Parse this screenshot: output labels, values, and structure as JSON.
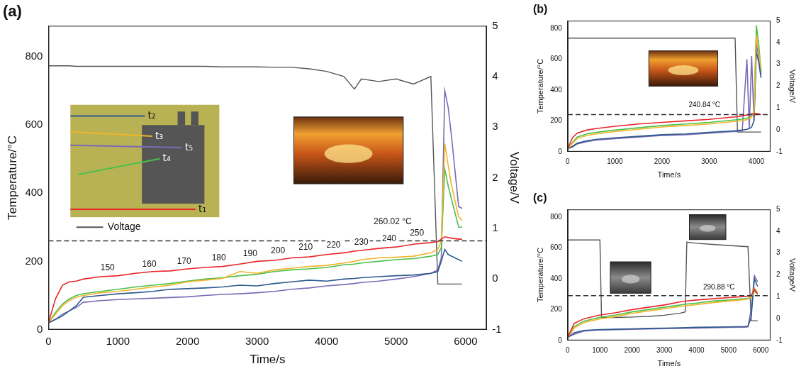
{
  "chart_data": [
    {
      "type": "line",
      "title": "(a)",
      "x_label": "Time/s",
      "y_label": "Temperature/°C",
      "y2_label": "Voltage/V",
      "x": [
        0,
        100,
        200,
        300,
        400,
        500,
        750,
        1000,
        1250,
        1500,
        1750,
        2000,
        2250,
        2500,
        2750,
        3000,
        3250,
        3500,
        3750,
        4000,
        4250,
        4400,
        4500,
        4750,
        5000,
        5250,
        5500,
        5600,
        5650,
        5700,
        5750,
        5800,
        5900,
        5950
      ],
      "series": [
        {
          "name": "t₁",
          "color": "#e8262b",
          "values": [
            20,
            90,
            130,
            140,
            142,
            148,
            155,
            158,
            165,
            170,
            172,
            178,
            182,
            185,
            192,
            200,
            203,
            210,
            213,
            220,
            225,
            230,
            232,
            238,
            242,
            250,
            255,
            258,
            265,
            272,
            270,
            268,
            265,
            265
          ]
        },
        {
          "name": "t₂",
          "color": "#2e5b8c",
          "values": [
            20,
            30,
            40,
            55,
            70,
            95,
            100,
            105,
            108,
            112,
            118,
            120,
            122,
            125,
            130,
            128,
            135,
            140,
            145,
            142,
            148,
            150,
            152,
            155,
            158,
            160,
            165,
            170,
            200,
            235,
            220,
            215,
            205,
            200
          ]
        },
        {
          "name": "t₃",
          "color": "#f0b429",
          "values": [
            20,
            45,
            70,
            85,
            95,
            100,
            108,
            112,
            118,
            125,
            130,
            140,
            145,
            150,
            170,
            165,
            175,
            180,
            185,
            188,
            195,
            200,
            205,
            210,
            212,
            215,
            225,
            235,
            260,
            545,
            480,
            420,
            330,
            320
          ]
        },
        {
          "name": "t₄",
          "color": "#4cc04c",
          "values": [
            20,
            50,
            75,
            90,
            100,
            105,
            112,
            118,
            125,
            130,
            135,
            142,
            148,
            152,
            158,
            162,
            170,
            175,
            178,
            182,
            190,
            192,
            195,
            200,
            205,
            208,
            215,
            220,
            240,
            470,
            420,
            380,
            300,
            300
          ]
        },
        {
          "name": "t₅",
          "color": "#7a6bb5",
          "values": [
            20,
            30,
            45,
            55,
            65,
            80,
            85,
            88,
            90,
            92,
            94,
            96,
            100,
            103,
            105,
            108,
            112,
            118,
            122,
            128,
            132,
            135,
            138,
            142,
            148,
            155,
            165,
            175,
            210,
            700,
            650,
            560,
            360,
            355
          ]
        },
        {
          "name": "Voltage",
          "color": "#555555",
          "axis": "y2",
          "values": [
            4.21,
            4.21,
            4.21,
            4.21,
            4.2,
            4.2,
            4.2,
            4.2,
            4.2,
            4.2,
            4.2,
            4.2,
            4.2,
            4.19,
            4.19,
            4.19,
            4.18,
            4.18,
            4.15,
            4.1,
            4.0,
            3.75,
            3.95,
            3.9,
            3.95,
            3.85,
            4.0,
            -0.1,
            -0.1,
            -0.1,
            -0.1,
            -0.1,
            -0.1,
            -0.1
          ]
        }
      ],
      "xlim": [
        0,
        6300
      ],
      "xticks": [
        0,
        1000,
        2000,
        3000,
        4000,
        5000,
        6000
      ],
      "ylim": [
        0,
        890
      ],
      "yticks": [
        0,
        200,
        400,
        600,
        800
      ],
      "y2lim": [
        -1,
        5
      ],
      "y2ticks": [
        -1,
        0,
        1,
        2,
        3,
        4,
        5
      ],
      "grid": false,
      "reference_lines": [
        260.02
      ],
      "annotations": [
        {
          "text": "150",
          "x": 850,
          "y": 180
        },
        {
          "text": "160",
          "x": 1450,
          "y": 190
        },
        {
          "text": "170",
          "x": 1950,
          "y": 200
        },
        {
          "text": "180",
          "x": 2450,
          "y": 210
        },
        {
          "text": "190",
          "x": 2900,
          "y": 222
        },
        {
          "text": "200",
          "x": 3300,
          "y": 230
        },
        {
          "text": "210",
          "x": 3700,
          "y": 240
        },
        {
          "text": "220",
          "x": 4100,
          "y": 248
        },
        {
          "text": "230",
          "x": 4500,
          "y": 256
        },
        {
          "text": "240",
          "x": 4900,
          "y": 266
        },
        {
          "text": "250",
          "x": 5300,
          "y": 282
        },
        {
          "text": "260.02 °C",
          "x": 4950,
          "y": 315
        }
      ]
    },
    {
      "type": "line",
      "title": "(b)",
      "x_label": "Time/s",
      "y_label": "Temperature/°C",
      "y2_label": "Voltage/V",
      "x": [
        0,
        100,
        200,
        400,
        600,
        1000,
        1500,
        2000,
        2500,
        3000,
        3500,
        3550,
        3600,
        3700,
        3800,
        3850,
        3900,
        3950,
        4000,
        4050,
        4100
      ],
      "series": [
        {
          "color": "#e8262b",
          "values": [
            20,
            90,
            120,
            140,
            150,
            165,
            180,
            190,
            200,
            210,
            225,
            226,
            228,
            232,
            238,
            240,
            245,
            245,
            248,
            245,
            240
          ]
        },
        {
          "color": "#f0b429",
          "values": [
            20,
            55,
            85,
            105,
            115,
            130,
            145,
            160,
            170,
            180,
            195,
            196,
            198,
            202,
            208,
            215,
            225,
            250,
            760,
            650,
            540
          ]
        },
        {
          "color": "#4cc04c",
          "values": [
            20,
            60,
            95,
            115,
            125,
            140,
            155,
            170,
            180,
            190,
            205,
            206,
            208,
            212,
            218,
            222,
            230,
            260,
            820,
            700,
            520
          ]
        },
        {
          "color": "#2e5b8c",
          "values": [
            20,
            35,
            55,
            70,
            80,
            90,
            100,
            110,
            115,
            125,
            135,
            136,
            138,
            140,
            145,
            150,
            160,
            200,
            650,
            580,
            480
          ]
        },
        {
          "color": "#7a6bb5",
          "values": [
            20,
            30,
            50,
            65,
            75,
            85,
            95,
            105,
            110,
            120,
            130,
            131,
            132,
            135,
            600,
            150,
            620,
            200,
            700,
            620,
            500
          ]
        },
        {
          "color": "#555555",
          "axis": "y2",
          "values": [
            4.2,
            4.2,
            4.2,
            4.2,
            4.2,
            4.2,
            4.2,
            4.2,
            4.2,
            4.2,
            4.2,
            4.2,
            -0.1,
            -0.1,
            -0.1,
            -0.1,
            -0.1,
            -0.1,
            -0.1,
            -0.1,
            -0.1
          ]
        }
      ],
      "xlim": [
        0,
        4300
      ],
      "xticks": [
        0,
        1000,
        2000,
        3000,
        4000
      ],
      "ylim": [
        0,
        850
      ],
      "yticks": [
        0,
        200,
        400,
        600,
        800
      ],
      "y2lim": [
        -1,
        5
      ],
      "y2ticks": [
        -1,
        0,
        1,
        2,
        3,
        4,
        5
      ],
      "grid": false,
      "reference_lines": [
        240.84
      ],
      "annotations": [
        {
          "text": "240.84 °C",
          "x": 2900,
          "y": 300
        }
      ]
    },
    {
      "type": "line",
      "title": "(c)",
      "x_label": "Time/s",
      "y_label": "Temperature/°C",
      "y2_label": "Voltage/V",
      "x": [
        0,
        200,
        500,
        1000,
        1050,
        1500,
        2000,
        2500,
        3000,
        3500,
        3650,
        3700,
        4000,
        4500,
        5000,
        5500,
        5600,
        5700,
        5800,
        5900
      ],
      "series": [
        {
          "color": "#e8262b",
          "values": [
            20,
            110,
            140,
            165,
            166,
            180,
            200,
            215,
            230,
            250,
            255,
            256,
            262,
            270,
            278,
            285,
            287,
            290,
            330,
            300
          ]
        },
        {
          "color": "#f0b429",
          "values": [
            20,
            80,
            115,
            140,
            141,
            155,
            175,
            190,
            205,
            220,
            225,
            226,
            232,
            245,
            255,
            265,
            270,
            280,
            340,
            310
          ]
        },
        {
          "color": "#4cc04c",
          "values": [
            20,
            90,
            125,
            150,
            151,
            165,
            185,
            200,
            215,
            230,
            235,
            236,
            242,
            255,
            262,
            270,
            273,
            285,
            320,
            300
          ]
        },
        {
          "color": "#2e5b8c",
          "values": [
            20,
            50,
            65,
            70,
            70,
            72,
            75,
            78,
            80,
            82,
            83,
            83,
            85,
            86,
            88,
            90,
            92,
            150,
            400,
            350
          ]
        },
        {
          "color": "#7a6bb5",
          "values": [
            20,
            40,
            60,
            68,
            68,
            70,
            72,
            74,
            76,
            78,
            79,
            79,
            80,
            82,
            84,
            86,
            88,
            200,
            420,
            380
          ]
        },
        {
          "color": "#555555",
          "axis": "y2",
          "values": [
            3.6,
            3.6,
            3.6,
            3.6,
            0.05,
            0.05,
            0.07,
            0.1,
            0.15,
            0.25,
            0.3,
            3.5,
            3.45,
            3.4,
            3.35,
            3.3,
            3.3,
            -0.1,
            -0.1,
            -0.1
          ]
        }
      ],
      "xlim": [
        0,
        6300
      ],
      "xticks": [
        0,
        1000,
        2000,
        3000,
        4000,
        5000,
        6000
      ],
      "ylim": [
        0,
        850
      ],
      "yticks": [
        0,
        200,
        400,
        600,
        800
      ],
      "y2lim": [
        -1,
        5
      ],
      "y2ticks": [
        -1,
        0,
        1,
        2,
        3,
        4,
        5
      ],
      "grid": false,
      "reference_lines": [
        290.88
      ],
      "annotations": [
        {
          "text": "290.88 °C",
          "x": 4700,
          "y": 345
        }
      ]
    }
  ]
}
